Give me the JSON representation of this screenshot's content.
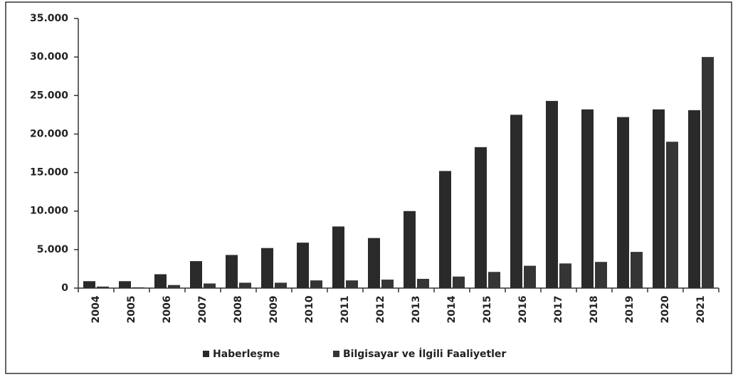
{
  "chart_data": {
    "type": "bar",
    "categories": [
      "2004",
      "2005",
      "2006",
      "2007",
      "2008",
      "2009",
      "2010",
      "2011",
      "2012",
      "2013",
      "2014",
      "2015",
      "2016",
      "2017",
      "2018",
      "2019",
      "2020",
      "2021"
    ],
    "series": [
      {
        "name": "Haberleşme",
        "color": "#2a2a2a",
        "values": [
          900,
          900,
          1800,
          3500,
          4300,
          5200,
          5900,
          8000,
          6500,
          10000,
          15200,
          18300,
          22500,
          24300,
          23200,
          22200,
          23200,
          23100
        ]
      },
      {
        "name": "Bilgisayar ve İlgili Faaliyetler",
        "color": "#353535",
        "values": [
          200,
          100,
          400,
          600,
          700,
          700,
          1000,
          1000,
          1100,
          1200,
          1500,
          2100,
          2900,
          3200,
          3400,
          4700,
          19000,
          30000
        ]
      }
    ],
    "ylim": [
      0,
      35000
    ],
    "yticks": [
      0,
      {
        "value": 5000,
        "label": "5.000"
      },
      {
        "value": 10000,
        "label": "10.000"
      },
      {
        "value": 15000,
        "label": "15.000"
      },
      {
        "value": 20000,
        "label": "20.000"
      },
      {
        "value": 25000,
        "label": "25.000"
      },
      {
        "value": 30000,
        "label": "30.000"
      },
      {
        "value": 35000,
        "label": "35.000"
      }
    ],
    "legend": "bottom"
  }
}
